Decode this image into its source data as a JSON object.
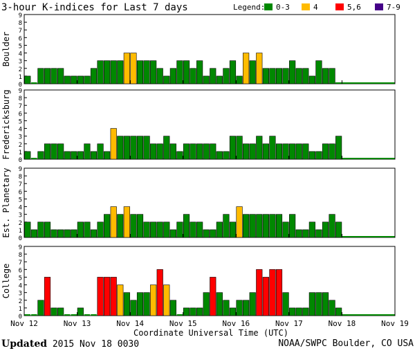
{
  "colors": {
    "quiet": "#008800",
    "active": "#ffbb00",
    "storm": "#ff0000",
    "severe": "#440088",
    "border": "#000000",
    "grid": "#000000"
  },
  "chart_data": {
    "type": "bar",
    "title": "3-hour K-indices for Last 7 days",
    "legend": {
      "label": "Legend:",
      "items": [
        {
          "label": "0-3",
          "color": "#008800"
        },
        {
          "label": "4",
          "color": "#ffbb00"
        },
        {
          "label": "5,6",
          "color": "#ff0000"
        },
        {
          "label": "7-9",
          "color": "#440088"
        }
      ]
    },
    "xlabel": "Coordinate Universal Time (UTC)",
    "x_ticks": [
      "Nov 12",
      "Nov 13",
      "Nov 14",
      "Nov 15",
      "Nov 16",
      "Nov 17",
      "Nov 18",
      "Nov 19"
    ],
    "ylim": [
      0,
      9
    ],
    "y_ticks": [
      0,
      1,
      2,
      3,
      4,
      5,
      6,
      7,
      8,
      9
    ],
    "slots_total": 56,
    "panels": [
      {
        "name": "Boulder",
        "values": [
          1,
          0,
          2,
          2,
          2,
          2,
          1,
          1,
          1,
          1,
          2,
          3,
          3,
          3,
          3,
          4,
          4,
          3,
          3,
          3,
          2,
          1,
          2,
          3,
          3,
          2,
          3,
          1,
          2,
          1,
          2,
          3,
          1,
          4,
          3,
          4,
          2,
          2,
          2,
          2,
          3,
          2,
          2,
          1,
          3,
          2,
          2
        ]
      },
      {
        "name": "Fredericksburg",
        "values": [
          1,
          0,
          1,
          2,
          2,
          2,
          1,
          1,
          1,
          2,
          1,
          2,
          1,
          4,
          3,
          3,
          3,
          3,
          3,
          2,
          2,
          3,
          2,
          1,
          2,
          2,
          2,
          2,
          2,
          1,
          1,
          3,
          3,
          2,
          2,
          3,
          2,
          3,
          2,
          2,
          2,
          2,
          2,
          1,
          1,
          2,
          2,
          3
        ]
      },
      {
        "name": "Est. Planetary",
        "values": [
          2,
          1,
          2,
          2,
          1,
          1,
          1,
          1,
          2,
          2,
          1,
          2,
          3,
          4,
          3,
          4,
          3,
          3,
          2,
          2,
          2,
          2,
          1,
          2,
          3,
          2,
          2,
          1,
          1,
          2,
          3,
          2,
          4,
          3,
          3,
          3,
          3,
          3,
          3,
          2,
          3,
          1,
          1,
          2,
          1,
          2,
          3,
          2
        ]
      },
      {
        "name": "College",
        "values": [
          0,
          0,
          2,
          5,
          1,
          1,
          0,
          0,
          1,
          0,
          0,
          5,
          5,
          5,
          4,
          3,
          2,
          3,
          3,
          4,
          6,
          4,
          2,
          0,
          1,
          1,
          1,
          3,
          5,
          3,
          2,
          1,
          2,
          2,
          3,
          6,
          5,
          6,
          6,
          3,
          1,
          1,
          1,
          3,
          3,
          3,
          2,
          1
        ]
      }
    ]
  },
  "footer": {
    "updated_label": "Updated",
    "updated_value": "2015 Nov 18 0030",
    "source": "NOAA/SWPC Boulder, CO USA"
  }
}
